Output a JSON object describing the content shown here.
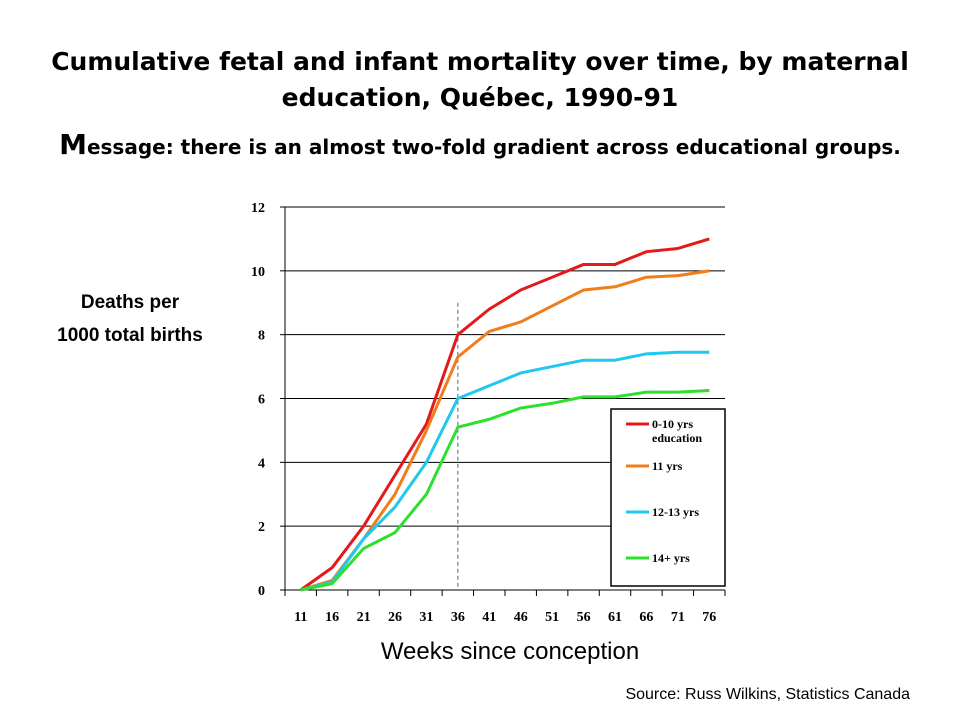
{
  "title_line1": "Cumulative fetal and infant mortality over time, by maternal",
  "title_line2": "education, Québec, 1990-91",
  "message_first_letter": "M",
  "message_rest": "essage: there is an almost two-fold gradient across educational groups.",
  "ylabel_line1": "Deaths per",
  "ylabel_line2": "1000 total births",
  "xlabel": "Weeks since conception",
  "source": "Source: Russ Wilkins, Statistics Canada",
  "chart_data": {
    "type": "line",
    "x": [
      11,
      16,
      21,
      26,
      31,
      36,
      41,
      46,
      51,
      56,
      61,
      66,
      71,
      76
    ],
    "xticks": [
      "11",
      "16",
      "21",
      "26",
      "31",
      "36",
      "41",
      "46",
      "51",
      "56",
      "61",
      "66",
      "71",
      "76"
    ],
    "yticks": [
      "0",
      "2",
      "4",
      "6",
      "8",
      "10",
      "12"
    ],
    "ylim": [
      0,
      12
    ],
    "grid": "horizontal",
    "reference_line_x": 36,
    "legend_position": "bottom-right",
    "series": [
      {
        "name": "0-10 yrs education",
        "name_line1": "0-10 yrs",
        "name_line2": "education",
        "color": "#e31a1c",
        "values": [
          0,
          0.7,
          2.0,
          3.6,
          5.2,
          8.0,
          8.8,
          9.4,
          9.8,
          10.2,
          10.2,
          10.6,
          10.7,
          11.0
        ]
      },
      {
        "name": "11 yrs",
        "name_line1": "11 yrs",
        "name_line2": "",
        "color": "#f07c1a",
        "values": [
          0,
          0.3,
          1.6,
          3.0,
          5.0,
          7.3,
          8.1,
          8.4,
          8.9,
          9.4,
          9.5,
          9.8,
          9.85,
          10.0
        ]
      },
      {
        "name": "12-13 yrs",
        "name_line1": "12-13 yrs",
        "name_line2": "",
        "color": "#1ec8f0",
        "values": [
          0,
          0.25,
          1.6,
          2.6,
          4.0,
          6.0,
          6.4,
          6.8,
          7.0,
          7.2,
          7.2,
          7.4,
          7.45,
          7.45
        ]
      },
      {
        "name": "14+ yrs",
        "name_line1": "14+ yrs",
        "name_line2": "",
        "color": "#2ee02e",
        "values": [
          0,
          0.2,
          1.3,
          1.8,
          3.0,
          5.1,
          5.35,
          5.7,
          5.85,
          6.05,
          6.05,
          6.2,
          6.2,
          6.25
        ]
      }
    ]
  }
}
